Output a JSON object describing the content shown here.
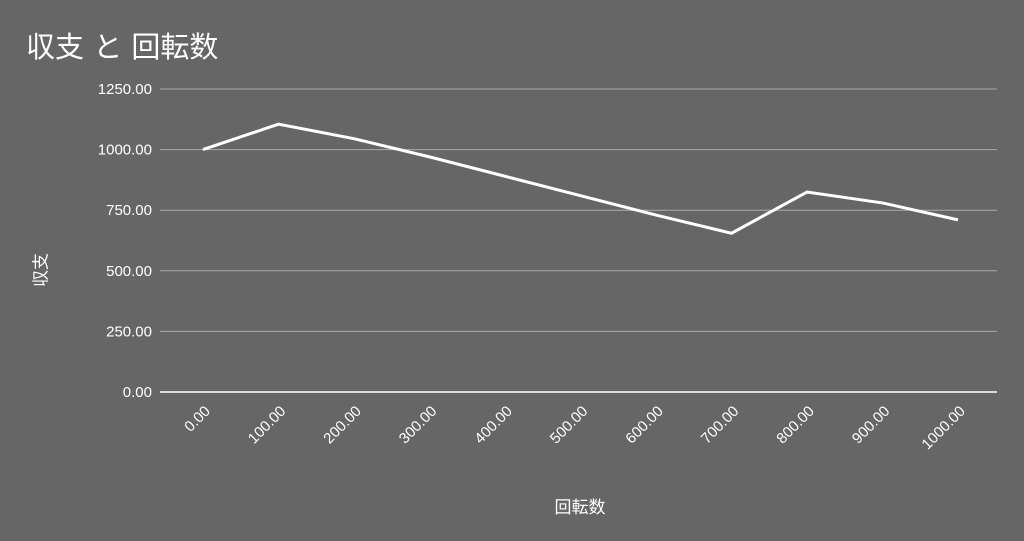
{
  "chart_data": {
    "type": "line",
    "title": "収支 と 回転数",
    "xlabel": "回転数",
    "ylabel": "収支",
    "x": [
      0,
      100,
      200,
      300,
      400,
      500,
      600,
      700,
      800,
      900,
      1000
    ],
    "x_tick_labels": [
      "0.00",
      "100.00",
      "200.00",
      "300.00",
      "400.00",
      "500.00",
      "600.00",
      "700.00",
      "800.00",
      "900.00",
      "1000.00"
    ],
    "y_tick_labels": [
      "0.00",
      "250.00",
      "500.00",
      "750.00",
      "1000.00",
      "1250.00"
    ],
    "y_ticks": [
      0,
      250,
      500,
      750,
      1000,
      1250
    ],
    "ylim": [
      0,
      1250
    ],
    "grid": true,
    "series": [
      {
        "values": [
          1000,
          1105,
          1045,
          970,
          890,
          810,
          730,
          655,
          825,
          780,
          710
        ],
        "color": "#ffffff"
      }
    ],
    "background": "#666666",
    "gridline_color": "#aaaaaa"
  }
}
